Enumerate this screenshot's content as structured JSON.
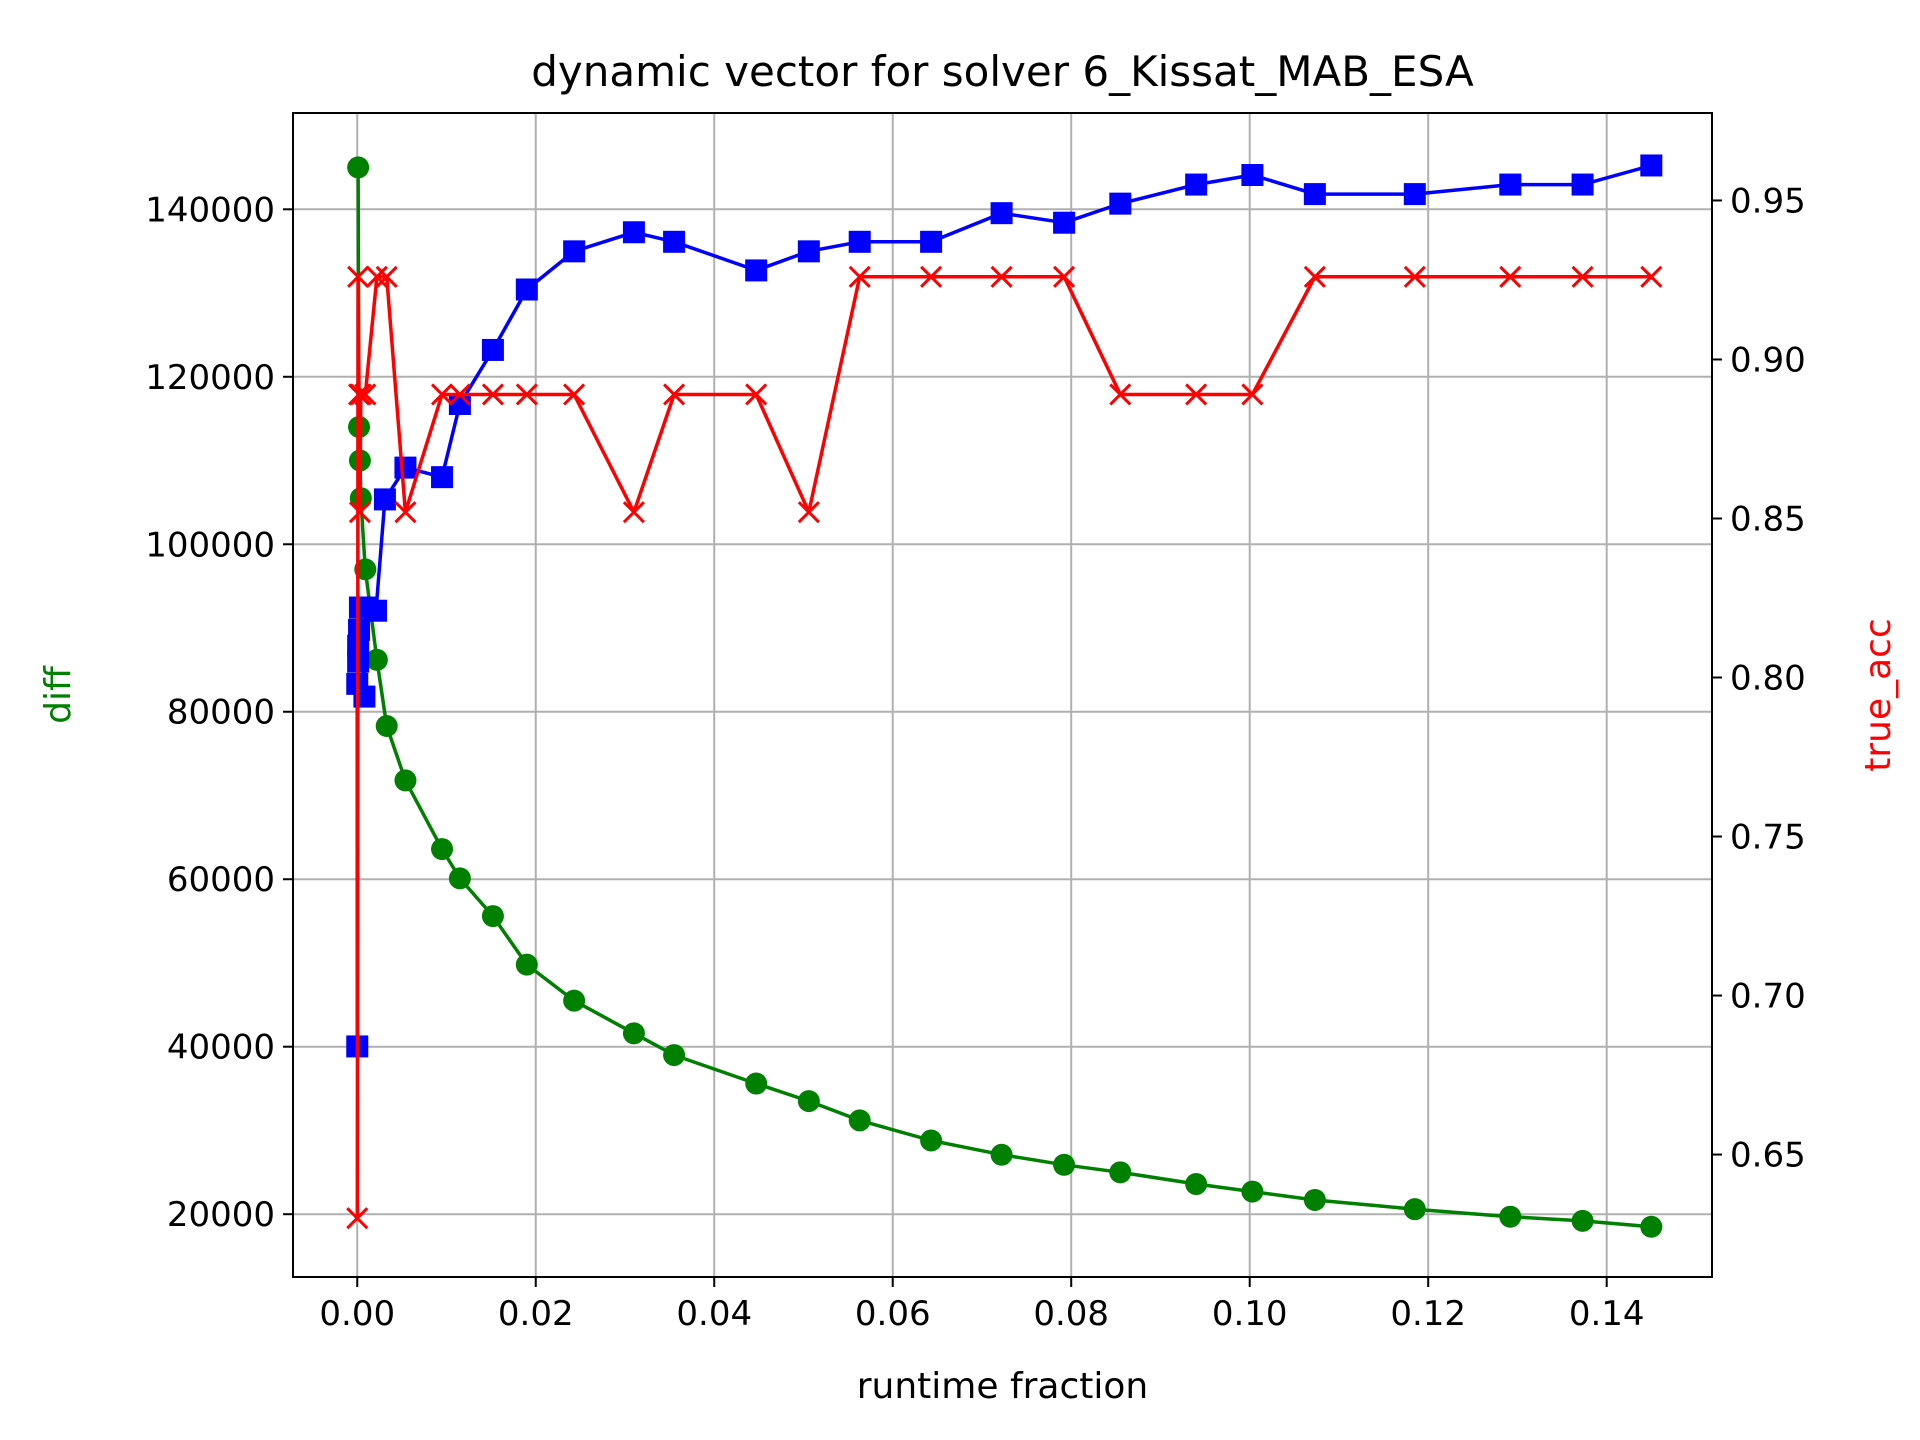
{
  "chart_data": {
    "type": "line",
    "title": "dynamic vector for solver 6_Kissat_MAB_ESA",
    "xlabel": "runtime fraction",
    "ylabel_left": "diff",
    "ylabel_right": "true_acc",
    "xlim": [
      -0.0072,
      0.1518
    ],
    "ylim_left": [
      12500,
      151500
    ],
    "ylim_right": [
      0.6115,
      0.9775
    ],
    "x_ticks": [
      "0.00",
      "0.02",
      "0.04",
      "0.06",
      "0.08",
      "0.10",
      "0.12",
      "0.14"
    ],
    "x_tick_values": [
      0,
      0.02,
      0.04,
      0.06,
      0.08,
      0.1,
      0.12,
      0.14
    ],
    "y_left_ticks": [
      "20000",
      "40000",
      "60000",
      "80000",
      "100000",
      "120000",
      "140000"
    ],
    "y_left_tick_values": [
      20000,
      40000,
      60000,
      80000,
      100000,
      120000,
      140000
    ],
    "y_right_ticks": [
      "0.65",
      "0.70",
      "0.75",
      "0.80",
      "0.85",
      "0.90",
      "0.95"
    ],
    "y_right_tick_values": [
      0.65,
      0.7,
      0.75,
      0.8,
      0.85,
      0.9,
      0.95
    ],
    "grid": true,
    "colors": {
      "diff": "#008000",
      "acc": "#0000ff",
      "true_acc": "#ff0000"
    },
    "series": [
      {
        "axis": "left",
        "marker": "circle",
        "color": "#008000",
        "x": [
          0.0001,
          0.0002,
          0.0003,
          0.0004,
          0.0009,
          0.0022,
          0.0033,
          0.0054,
          0.0095,
          0.0115,
          0.0152,
          0.019,
          0.0243,
          0.031,
          0.0355,
          0.0447,
          0.0506,
          0.0563,
          0.0643,
          0.0722,
          0.0792,
          0.0855,
          0.094,
          0.1003,
          0.1073,
          0.1185,
          0.1292,
          0.1373,
          0.145
        ],
        "y": [
          145000,
          114000,
          110000,
          105500,
          97000,
          86200,
          78300,
          71800,
          63600,
          60100,
          55600,
          49800,
          45500,
          41600,
          39000,
          35600,
          33500,
          31200,
          28800,
          27100,
          25900,
          25000,
          23600,
          22700,
          21700,
          20600,
          19700,
          19200,
          18500
        ]
      },
      {
        "axis": "right",
        "marker": "square",
        "color": "#0000ff",
        "x": [
          0.0,
          0.0,
          0.0001,
          0.0001,
          0.0002,
          0.0003,
          0.0008,
          0.0009,
          0.0021,
          0.0031,
          0.0054,
          0.0095,
          0.0115,
          0.0152,
          0.019,
          0.0243,
          0.031,
          0.0355,
          0.0447,
          0.0506,
          0.0563,
          0.0643,
          0.0722,
          0.0792,
          0.0855,
          0.094,
          0.1003,
          0.1073,
          0.1185,
          0.1292,
          0.1373,
          0.145
        ],
        "y": [
          0.684,
          0.798,
          0.805,
          0.81,
          0.815,
          0.822,
          0.794,
          0.822,
          0.821,
          0.856,
          0.866,
          0.863,
          0.886,
          0.903,
          0.922,
          0.934,
          0.94,
          0.937,
          0.928,
          0.934,
          0.937,
          0.937,
          0.946,
          0.943,
          0.949,
          0.955,
          0.958,
          0.952,
          0.952,
          0.955,
          0.955,
          0.961
        ]
      },
      {
        "axis": "right",
        "marker": "x",
        "color": "#ff0000",
        "x": [
          0.0,
          0.0001,
          0.0002,
          0.0003,
          0.0004,
          0.0009,
          0.0022,
          0.0033,
          0.0054,
          0.0095,
          0.0115,
          0.0152,
          0.019,
          0.0243,
          0.031,
          0.0355,
          0.0447,
          0.0506,
          0.0563,
          0.0643,
          0.0722,
          0.0792,
          0.0855,
          0.094,
          0.1003,
          0.1073,
          0.1185,
          0.1292,
          0.1373,
          0.145
        ],
        "y": [
          0.63,
          0.926,
          0.889,
          0.852,
          0.889,
          0.889,
          0.926,
          0.926,
          0.852,
          0.889,
          0.889,
          0.889,
          0.889,
          0.889,
          0.852,
          0.889,
          0.889,
          0.852,
          0.926,
          0.926,
          0.926,
          0.926,
          0.889,
          0.889,
          0.889,
          0.926,
          0.926,
          0.926,
          0.926,
          0.926
        ]
      }
    ]
  }
}
